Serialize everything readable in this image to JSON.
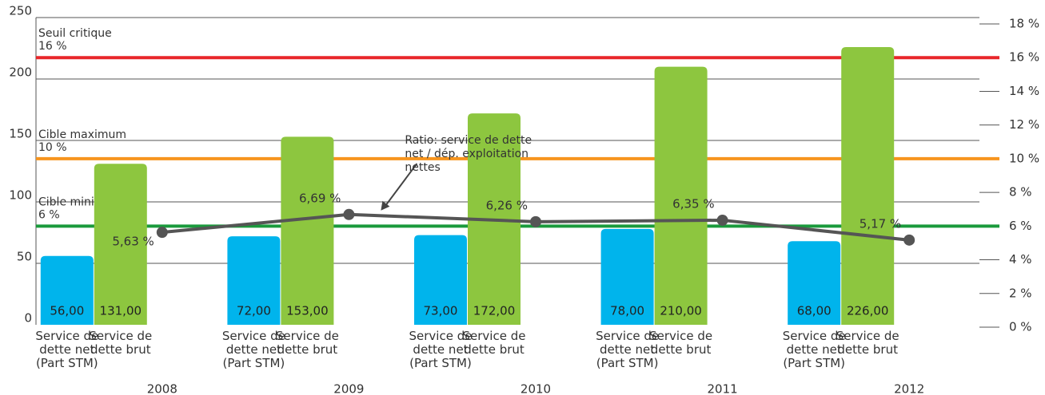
{
  "chart_data": {
    "type": "bar",
    "categories": [
      "2008",
      "2009",
      "2010",
      "2011",
      "2012"
    ],
    "series": [
      {
        "name": "Service de dette net (Part STM)",
        "color": "#00b4ec",
        "values": [
          56,
          72,
          73,
          78,
          68
        ],
        "value_labels": [
          "56,00",
          "72,00",
          "73,00",
          "78,00",
          "68,00"
        ]
      },
      {
        "name": "Service de dette brut",
        "color": "#8dc63f",
        "values": [
          131,
          153,
          172,
          210,
          226
        ],
        "value_labels": [
          "131,00",
          "153,00",
          "172,00",
          "210,00",
          "226,00"
        ]
      },
      {
        "name": "Ratio: service de dette net / dép. exploitation nettes",
        "type": "line",
        "axis": "y2",
        "color": "#555555",
        "values": [
          5.63,
          6.69,
          6.26,
          6.35,
          5.17
        ],
        "value_labels": [
          "5,63 %",
          "6,69 %",
          "6,26 %",
          "6,35 %",
          "5,17 %"
        ]
      }
    ],
    "thresholds": [
      {
        "name": "Seuil critique",
        "value": 16,
        "value_label": "16 %",
        "color": "#e8262a"
      },
      {
        "name": "Cible maximum",
        "value": 10,
        "value_label": "10 %",
        "color": "#f7941d"
      },
      {
        "name": "Cible minimum",
        "value": 6,
        "value_label": "6 %",
        "color": "#1a9a3c"
      }
    ],
    "ylim": [
      0,
      250
    ],
    "yticks": [
      0,
      50,
      100,
      150,
      200,
      250
    ],
    "y2lim": [
      0,
      18
    ],
    "y2ticks": [
      {
        "value": 0,
        "label": "0 %"
      },
      {
        "value": 2,
        "label": "2 %"
      },
      {
        "value": 4,
        "label": "4 %"
      },
      {
        "value": 6,
        "label": "6 %"
      },
      {
        "value": 8,
        "label": "8 %"
      },
      {
        "value": 10,
        "label": "10 %"
      },
      {
        "value": 12,
        "label": "12 %"
      },
      {
        "value": 14,
        "label": "14 %"
      },
      {
        "value": 16,
        "label": "16 %"
      },
      {
        "value": 18,
        "label": "18 %"
      }
    ],
    "grid": true
  }
}
